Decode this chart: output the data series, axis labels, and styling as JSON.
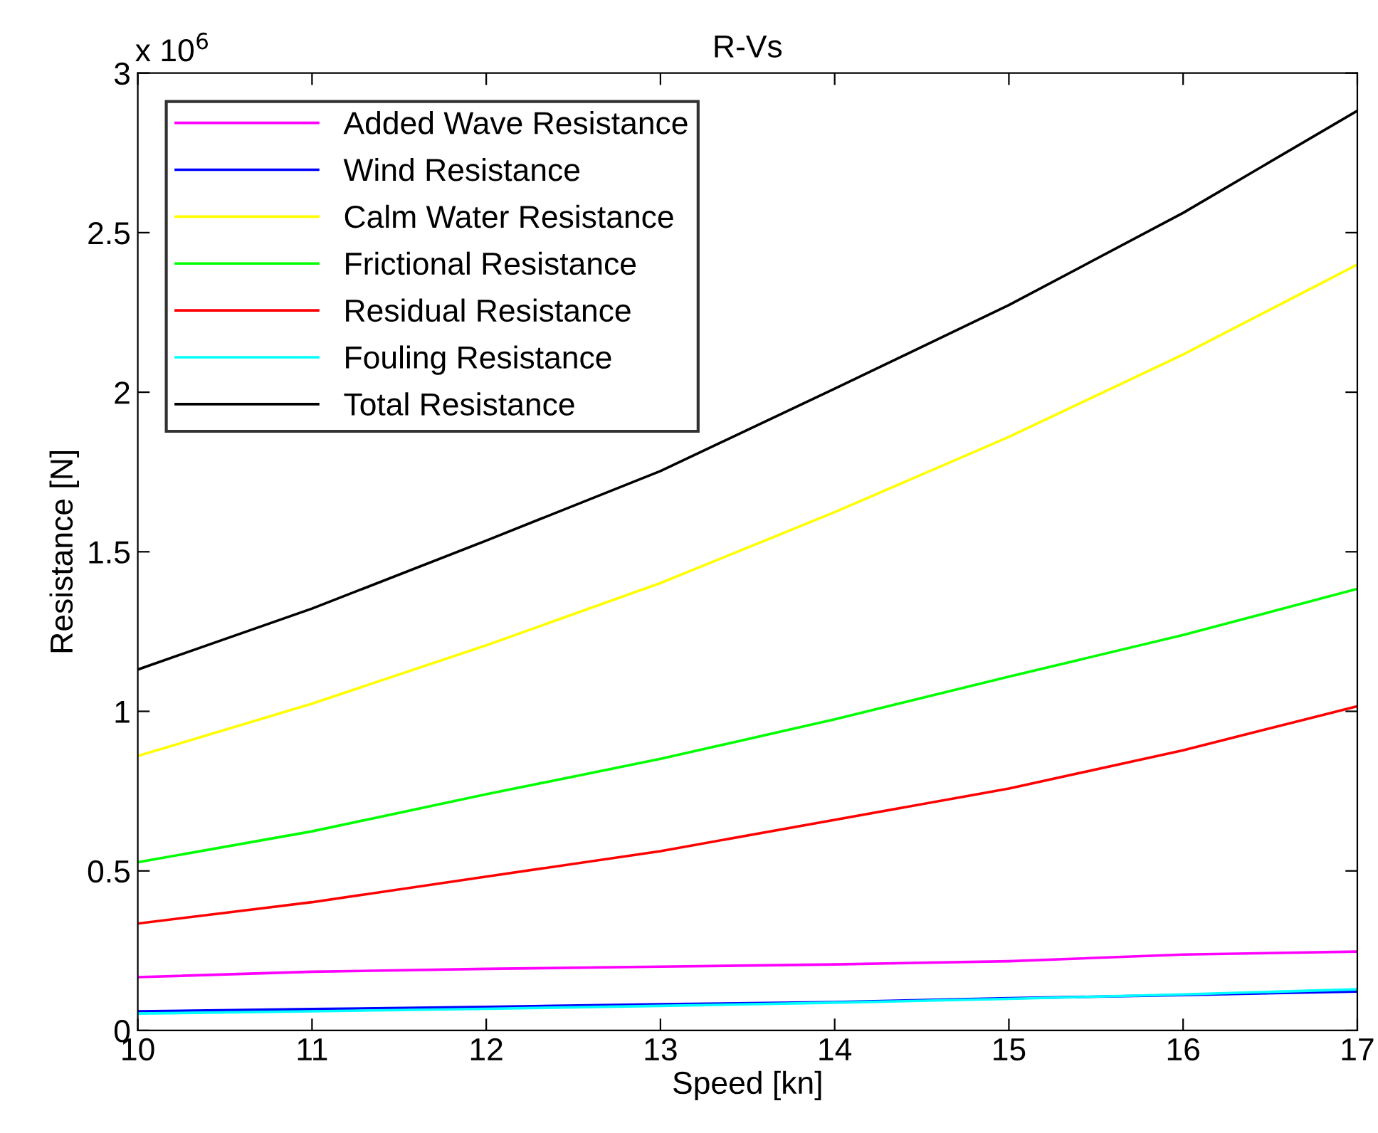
{
  "chart_data": {
    "type": "line",
    "title": "R-Vs",
    "xlabel": "Speed [kn]",
    "ylabel": "Resistance [N]",
    "annotations": [
      "x 10$^{6}$"
    ],
    "x": [
      10,
      11,
      12,
      13,
      14,
      15,
      16,
      17
    ],
    "xlim": [
      10,
      17
    ],
    "xticks": [
      10,
      11,
      12,
      13,
      14,
      15,
      16,
      17
    ],
    "ylim": [
      0,
      3
    ],
    "yticks": [
      0,
      0.5,
      1,
      1.5,
      2,
      2.5,
      3
    ],
    "grid": false,
    "legend": "top left",
    "marker": "none",
    "line_style": "solid",
    "series": [
      {
        "name": "Added Wave Resistance",
        "color": "#ff00ff",
        "values": [
          0.167,
          0.184,
          0.193,
          0.2,
          0.207,
          0.217,
          0.238,
          0.247
        ]
      },
      {
        "name": "Wind Resistance",
        "color": "#0000ff",
        "values": [
          0.06,
          0.067,
          0.074,
          0.082,
          0.089,
          0.101,
          0.111,
          0.122
        ]
      },
      {
        "name": "Calm Water Resistance",
        "color": "#ffff00",
        "values": [
          0.86,
          1.024,
          1.207,
          1.402,
          1.624,
          1.86,
          2.118,
          2.4
        ]
      },
      {
        "name": "Frictional Resistance",
        "color": "#00ff00",
        "values": [
          0.527,
          0.624,
          0.74,
          0.851,
          0.975,
          1.109,
          1.239,
          1.384
        ]
      },
      {
        "name": "Residual Resistance",
        "color": "#ff0000",
        "values": [
          0.335,
          0.402,
          0.482,
          0.562,
          0.66,
          0.758,
          0.878,
          1.016
        ]
      },
      {
        "name": "Fouling Resistance",
        "color": "#00ffff",
        "values": [
          0.053,
          0.06,
          0.068,
          0.077,
          0.087,
          0.099,
          0.113,
          0.129
        ]
      },
      {
        "name": "Total Resistance",
        "color": "#000000",
        "values": [
          1.131,
          1.322,
          1.535,
          1.753,
          2.011,
          2.273,
          2.562,
          2.882
        ]
      }
    ]
  }
}
